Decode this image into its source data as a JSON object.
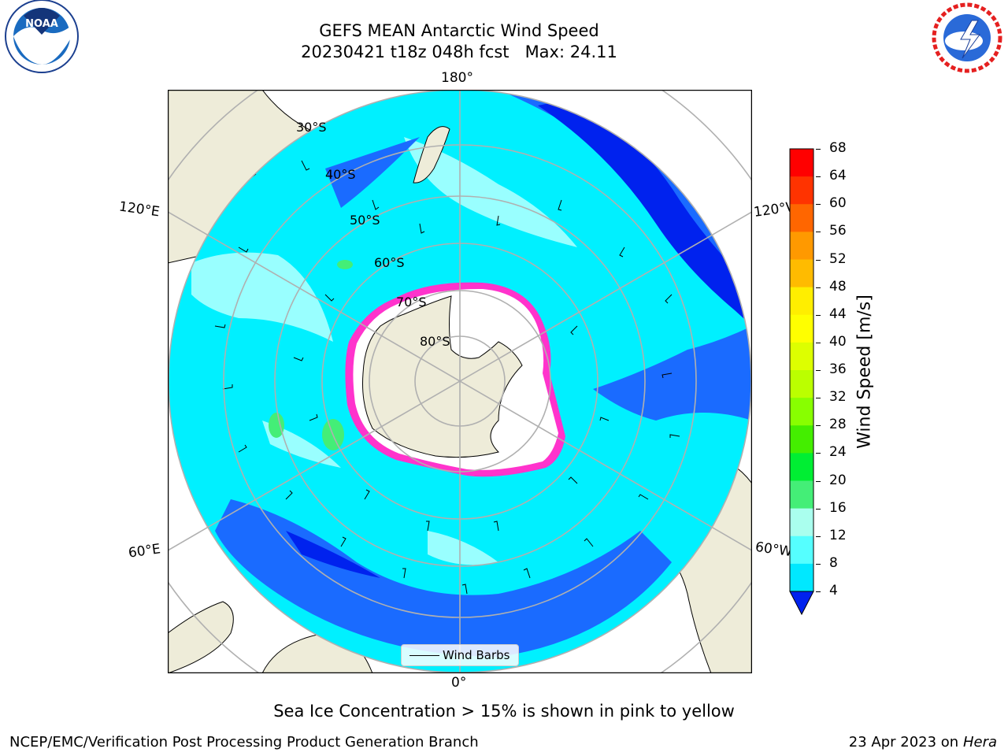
{
  "title": {
    "line1": "GEFS MEAN Antarctic Wind Speed",
    "line2": "20230421 t18z 048h fcst   Max: 24.11"
  },
  "longitude_labels": {
    "top": "180°",
    "bottom": "0°",
    "left_upper": "120°E",
    "right_upper": "120°W",
    "left_lower": "60°E",
    "right_lower": "60°W"
  },
  "latitude_labels": [
    "30°S",
    "40°S",
    "50°S",
    "60°S",
    "70°S",
    "80°S"
  ],
  "legend": {
    "label": "Wind Barbs"
  },
  "colorbar": {
    "label": "Wind Speed [m/s]",
    "ticks": [
      "68",
      "64",
      "60",
      "56",
      "52",
      "48",
      "44",
      "40",
      "36",
      "32",
      "28",
      "24",
      "20",
      "16",
      "12",
      "8",
      "4"
    ],
    "colors": [
      "#ff0000",
      "#ff3300",
      "#ff6600",
      "#ff9900",
      "#ffbb00",
      "#ffee00",
      "#ffff00",
      "#ddff00",
      "#bbff00",
      "#88ff00",
      "#44ee00",
      "#00ee33",
      "#44ee77",
      "#aaffee",
      "#55ffff",
      "#00e8ff",
      "#0077ff",
      "#0022ee"
    ]
  },
  "note": "Sea Ice Concentration > 15% is shown in pink to yellow",
  "footer": {
    "left": "NCEP/EMC/Verification Post Processing Product Generation Branch",
    "right_prefix": "23 Apr 2023 on ",
    "right_host": "Hera"
  },
  "logos": {
    "left": "NOAA",
    "right": "NATIONAL WEATHER SERVICE"
  },
  "colors": {
    "land": "#eeecd9",
    "ocean_cyan": "#00f0ff",
    "ocean_blue": "#1a6bff",
    "ocean_deep": "#0022ee",
    "ocean_light": "#99ffff",
    "grid": "#b0b0b0",
    "ice": "#ff33cc"
  }
}
